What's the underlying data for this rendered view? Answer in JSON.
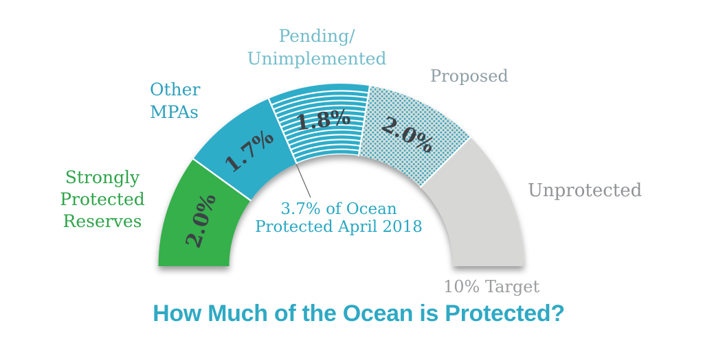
{
  "title": {
    "text": "How Much of the Ocean is Protected?",
    "color": "#2fa9c4"
  },
  "labels": {
    "strongly_protected": {
      "text": "Strongly\nProtected\nReserves",
      "color": "#2fa44a"
    },
    "other_mpas": {
      "text": "Other\nMPAs",
      "color": "#2d9fbd"
    },
    "pending_unimplemented": {
      "text": "Pending/\nUnimplemented",
      "color": "#74bccb"
    },
    "proposed": {
      "text": "Proposed",
      "color": "#8d9ea5"
    },
    "unprotected": {
      "text": "Unprotected",
      "color": "#919396"
    },
    "target": {
      "text": "10% Target",
      "color": "#9a9c9e"
    }
  },
  "annotation": {
    "text": "3.7% of Ocean\nProtected April 2018",
    "color": "#2aa7c2"
  },
  "chart_data": {
    "type": "gauge",
    "subtype": "semicircular-donut",
    "title": "How Much of the Ocean is Protected?",
    "unit": "percent of global ocean",
    "arc_degrees": 180,
    "target_total_pct": 10,
    "protected_total_pct": 3.7,
    "as_of": "April 2018",
    "grid": false,
    "legend_position": "around-arc",
    "categories": [
      "Strongly Protected Reserves",
      "Other MPAs",
      "Pending/Unimplemented",
      "Proposed",
      "Unprotected"
    ],
    "values": [
      2.0,
      1.7,
      1.8,
      2.0,
      2.5
    ],
    "value_label_color": "#3d4247",
    "separator_color": "#ffffff",
    "segments": [
      {
        "id": "strongly-protected-reserves",
        "category": "Strongly Protected Reserves",
        "value": 2.0,
        "value_label": "2.0%",
        "fill": "solid",
        "color": "#35b04c"
      },
      {
        "id": "other-mpas",
        "category": "Other MPAs",
        "value": 1.7,
        "value_label": "1.7%",
        "fill": "solid",
        "color": "#2fadc9"
      },
      {
        "id": "pending-unimplemented",
        "category": "Pending/Unimplemented",
        "value": 1.8,
        "value_label": "1.8%",
        "fill": "stripes",
        "color": "#2fadc9",
        "stripe_color": "#ffffff"
      },
      {
        "id": "proposed",
        "category": "Proposed",
        "value": 2.0,
        "value_label": "2.0%",
        "fill": "dots",
        "color": "#2aa9c6",
        "dot_bg": "#dcdcd8"
      },
      {
        "id": "unprotected",
        "category": "Unprotected",
        "value": 2.5,
        "value_label": "",
        "fill": "solid",
        "color": "#d7d7d5"
      }
    ]
  }
}
